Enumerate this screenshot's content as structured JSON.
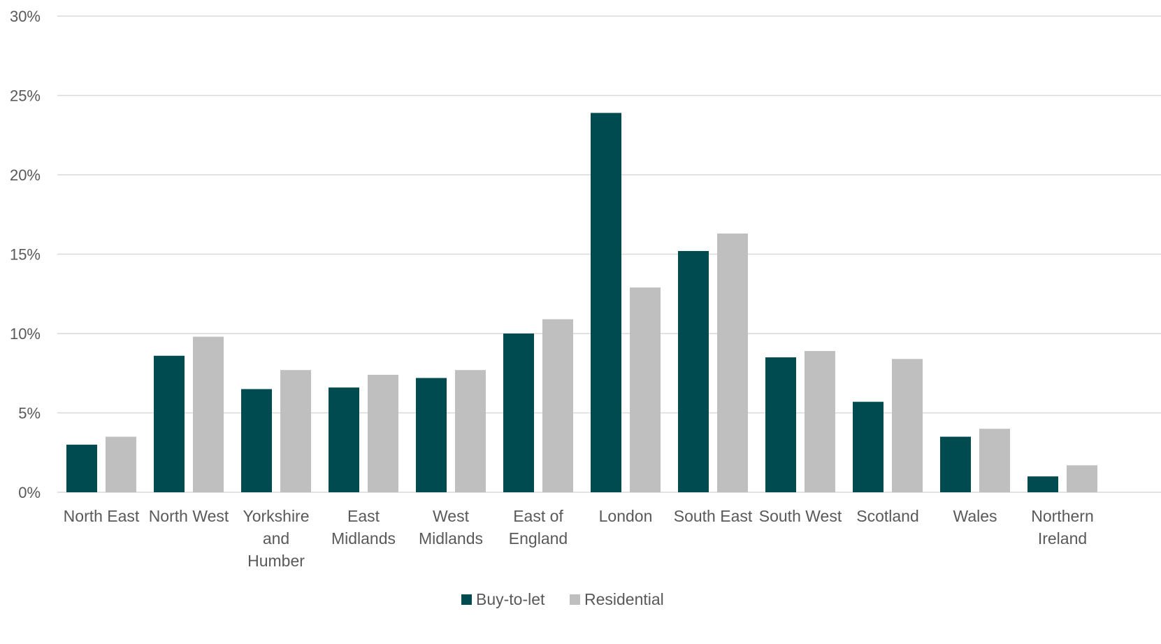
{
  "chart_data": {
    "type": "bar",
    "categories": [
      [
        "North East"
      ],
      [
        "North West"
      ],
      [
        "Yorkshire",
        "and",
        "Humber"
      ],
      [
        "East",
        "Midlands"
      ],
      [
        "West",
        "Midlands"
      ],
      [
        "East of",
        "England"
      ],
      [
        "London"
      ],
      [
        "South East"
      ],
      [
        "South West"
      ],
      [
        "Scotland"
      ],
      [
        "Wales"
      ],
      [
        "Northern",
        "Ireland"
      ]
    ],
    "series": [
      {
        "name": "Buy-to-let",
        "color": "#004b50",
        "values": [
          3.0,
          8.6,
          6.5,
          6.6,
          7.2,
          10.0,
          23.9,
          15.2,
          8.5,
          5.7,
          3.5,
          1.0
        ]
      },
      {
        "name": "Residential",
        "color": "#bfbfc0",
        "values": [
          3.5,
          9.8,
          7.7,
          7.4,
          7.7,
          10.9,
          12.9,
          16.3,
          8.9,
          8.4,
          4.0,
          1.7
        ]
      }
    ],
    "ylim": [
      0,
      30
    ],
    "yticks": [
      0,
      5,
      10,
      15,
      20,
      25,
      30
    ],
    "ytick_suffix": "%",
    "grid": true,
    "legend_position": "bottom"
  }
}
